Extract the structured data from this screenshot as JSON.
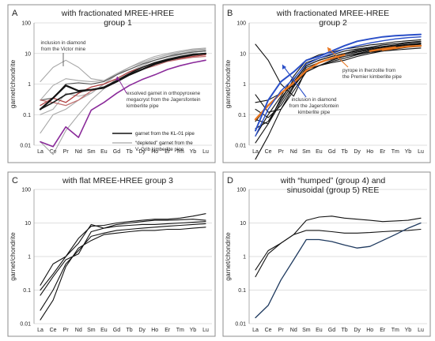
{
  "chart_data": {
    "type": "line",
    "x_categories": [
      "La",
      "Ce",
      "Pr",
      "Nd",
      "Sm",
      "Eu",
      "Gd",
      "Tb",
      "Dy",
      "Ho",
      "Er",
      "Tm",
      "Yb",
      "Lu"
    ],
    "ylabel": "garnet/chondrite",
    "yscale": "log",
    "ylim": [
      0.01,
      100
    ],
    "y_ticks": [
      "0.01",
      "0.1",
      "1",
      "10",
      "100"
    ],
    "grid": true,
    "panels": [
      {
        "letter": "A",
        "title_lines": [
          "with fractionated MREE-HREE",
          "group 1"
        ],
        "legend": [
          {
            "label": "garnet from the KL-01 pipe",
            "color": "#111111"
          },
          {
            "label": "“depleted” garnet from the",
            "label2": "V. Grib kimberlite pipe",
            "color": "#a8a8a8"
          }
        ],
        "annotations": [
          {
            "lines": [
              "inclusion in diamond",
              "from the Victor mine"
            ],
            "color": "#333333"
          },
          {
            "lines": [
              "exsolved garnet  in orthopyroxene",
              "megacryst from the Jagersfontein",
              "kimberlite pipe"
            ],
            "color": "#333333"
          }
        ],
        "series": [
          {
            "color": "#a8a8a8",
            "width": 1.1,
            "values": [
              0.3,
              0.9,
              1.5,
              1.3,
              1.2,
              1.3,
              2.2,
              3.5,
              5,
              7,
              9,
              11,
              13,
              14
            ]
          },
          {
            "color": "#a8a8a8",
            "width": 1.1,
            "values": [
              0.1,
              0.15,
              0.5,
              0.4,
              0.5,
              1.0,
              2.0,
              3.5,
              5,
              7,
              9,
              10,
              12,
              13
            ]
          },
          {
            "color": "#a8a8a8",
            "width": 1.1,
            "values": [
              0.025,
              0.1,
              0.15,
              0.3,
              0.5,
              1.0,
              2.0,
              3.5,
              5.5,
              8,
              10,
              12,
              14,
              15
            ]
          },
          {
            "color": "#a8a8a8",
            "width": 1.1,
            "values": [
              0.013,
              0.005,
              0.03,
              0.1,
              0.3,
              0.7,
              1.5,
              2.5,
              4,
              6,
              8,
              10,
              11,
              12
            ]
          },
          {
            "color": "#a8a8a8",
            "width": 1.1,
            "values": [
              1.2,
              3.5,
              6,
              3.5,
              1.5,
              1.3,
              2.0,
              3,
              4.5,
              6,
              7.5,
              9,
              11,
              12
            ]
          },
          {
            "color": "#555555",
            "width": 1.1,
            "values": [
              0.3,
              0.35,
              1.0,
              1.1,
              1.0,
              1.2,
              2.0,
              3,
              4.5,
              6,
              8,
              9.5,
              11,
              12
            ]
          },
          {
            "color": "#b04040",
            "width": 1.3,
            "values": [
              0.2,
              0.35,
              0.25,
              0.5,
              0.8,
              1.0,
              1.5,
              2.5,
              3.5,
              5,
              6,
              7,
              8,
              9
            ]
          },
          {
            "color": "#c07070",
            "width": 1.3,
            "values": [
              0.3,
              0.25,
              0.2,
              0.3,
              0.6,
              0.8,
              1.3,
              2.0,
              3,
              4,
              5.5,
              6.5,
              7.5,
              8
            ]
          },
          {
            "color": "#111111",
            "width": 2.2,
            "values": [
              0.15,
              0.35,
              0.9,
              0.6,
              0.65,
              0.75,
              1.2,
              2.0,
              3,
              4.5,
              6,
              7.5,
              9,
              10
            ]
          },
          {
            "color": "#1a1a1a",
            "width": 1.6,
            "values": [
              0.15,
              0.25,
              0.45,
              0.55,
              0.65,
              0.8,
              1.3,
              2.2,
              3.5,
              5,
              6.5,
              8,
              9.5,
              10
            ]
          },
          {
            "color": "#8a2a9a",
            "width": 1.6,
            "values": [
              0.013,
              0.009,
              0.04,
              0.018,
              0.14,
              0.25,
              0.5,
              0.9,
              1.4,
              2.0,
              3,
              4,
              5,
              6
            ]
          }
        ]
      },
      {
        "letter": "B",
        "title_lines": [
          "with fractionated MREE-HREE",
          "group 2"
        ],
        "legend": [],
        "annotations": [
          {
            "lines": [
              "pyrope in lherzolite from",
              "the Premier kimberlite pipe"
            ],
            "color": "#333333"
          },
          {
            "lines": [
              "inclusion in diamond",
              "from the Jagersfontein",
              "kimberlite pipe"
            ],
            "color": "#333333"
          }
        ],
        "series": [
          {
            "color": "#111111",
            "width": 1.1,
            "values": [
              20,
              6,
              1.0,
              0.4,
              3,
              4,
              5,
              6,
              8,
              10,
              12,
              14,
              16,
              17
            ]
          },
          {
            "color": "#111111",
            "width": 1.1,
            "values": [
              0.45,
              0.12,
              0.15,
              0.6,
              2.5,
              4,
              6,
              8,
              10,
              12,
              14,
              16,
              18,
              20
            ]
          },
          {
            "color": "#111111",
            "width": 1.1,
            "values": [
              0.15,
              0.08,
              0.2,
              0.9,
              3.5,
              5,
              7,
              9,
              11,
              13,
              15,
              17,
              20,
              22
            ]
          },
          {
            "color": "#111111",
            "width": 1.1,
            "values": [
              0.07,
              0.05,
              0.25,
              1.1,
              4,
              6,
              8,
              10,
              13,
              15,
              17,
              19,
              22,
              24
            ]
          },
          {
            "color": "#111111",
            "width": 1.1,
            "values": [
              0.035,
              0.06,
              0.3,
              1.4,
              5,
              7,
              9,
              12,
              14,
              16,
              19,
              21,
              23,
              25
            ]
          },
          {
            "color": "#111111",
            "width": 1.1,
            "values": [
              0.02,
              0.1,
              0.4,
              1.8,
              6,
              9,
              11,
              14,
              16,
              19,
              21,
              24,
              26,
              28
            ]
          },
          {
            "color": "#111111",
            "width": 1.1,
            "values": [
              0.012,
              0.05,
              0.35,
              1.2,
              4,
              6,
              8,
              10,
              12,
              14,
              16,
              18,
              20,
              21
            ]
          },
          {
            "color": "#111111",
            "width": 1.1,
            "values": [
              0.0035,
              0.02,
              0.15,
              0.8,
              3,
              5,
              7,
              9,
              11,
              13,
              15,
              17,
              19,
              20
            ]
          },
          {
            "color": "#111111",
            "width": 1.1,
            "values": [
              0.25,
              0.3,
              0.5,
              0.9,
              2.5,
              4,
              5.5,
              7,
              9,
              11,
              13,
              15,
              17,
              18
            ]
          },
          {
            "color": "#111111",
            "width": 1.1,
            "values": [
              0.06,
              0.2,
              0.5,
              1.0,
              3,
              5,
              6.5,
              8,
              9.5,
              11,
              12,
              13,
              14,
              15
            ]
          },
          {
            "color": "#e87722",
            "width": 2.4,
            "values": [
              0.07,
              0.2,
              0.5,
              1.1,
              2.8,
              5,
              7,
              9,
              null,
              12,
              14,
              16,
              null,
              null
            ]
          },
          {
            "color": "#e87722",
            "width": 2.4,
            "values": [
              null,
              null,
              null,
              null,
              null,
              null,
              null,
              null,
              null,
              null,
              13,
              15,
              17,
              18
            ]
          },
          {
            "color": "#2a4fc8",
            "width": 2.0,
            "values": [
              0.03,
              0.3,
              1.2,
              2.5,
              6,
              8,
              12,
              18,
              25,
              30,
              35,
              38,
              40,
              42
            ]
          },
          {
            "color": "#2a4fc8",
            "width": 1.4,
            "values": [
              0.02,
              0.15,
              0.6,
              1.5,
              4.5,
              7,
              10,
              14,
              18,
              22,
              26,
              30,
              33,
              35
            ]
          }
        ]
      },
      {
        "letter": "C",
        "title_lines": [
          "with flat MREE-HREE group 3"
        ],
        "legend": [],
        "annotations": [],
        "series": [
          {
            "color": "#111111",
            "width": 1.1,
            "values": [
              0.14,
              0.6,
              1.0,
              2.5,
              9,
              7,
              9,
              10,
              11,
              12,
              12,
              12.5,
              13,
              12
            ]
          },
          {
            "color": "#111111",
            "width": 1.1,
            "values": [
              0.1,
              0.3,
              1.0,
              3.5,
              8,
              8.5,
              10,
              11,
              12,
              13,
              13,
              14,
              16,
              19
            ]
          },
          {
            "color": "#111111",
            "width": 1.1,
            "values": [
              0.07,
              0.25,
              0.8,
              1.2,
              5.5,
              7,
              8,
              8.5,
              9,
              9,
              9.5,
              10,
              10.5,
              11
            ]
          },
          {
            "color": "#111111",
            "width": 1.1,
            "values": [
              0.025,
              0.1,
              0.6,
              1.5,
              4,
              5,
              6,
              6.5,
              7,
              7.5,
              8,
              8.5,
              9,
              9.5
            ]
          },
          {
            "color": "#111111",
            "width": 1.1,
            "values": [
              0.013,
              0.05,
              0.5,
              1.8,
              3,
              4.5,
              5,
              5.5,
              6,
              6,
              6.5,
              6.5,
              7,
              7.5
            ]
          }
        ]
      },
      {
        "letter": "D",
        "title_lines": [
          "with “humped” (group 4) and",
          "sinusoidal (group 5) REE"
        ],
        "legend": [],
        "annotations": [],
        "series": [
          {
            "color": "#111111",
            "width": 1.1,
            "values": [
              0.4,
              1.5,
              2.5,
              4.5,
              12,
              15,
              16,
              14,
              13,
              12,
              11,
              11.5,
              12,
              14
            ]
          },
          {
            "color": "#111111",
            "width": 1.1,
            "values": [
              0.25,
              1.2,
              2.5,
              4.5,
              6,
              6,
              5.5,
              5,
              5,
              5.2,
              5.5,
              5.8,
              6,
              6.5
            ]
          },
          {
            "color": "#1f3a5f",
            "width": 1.3,
            "values": [
              0.015,
              0.035,
              0.2,
              0.8,
              3.2,
              3.2,
              2.8,
              2.2,
              1.8,
              2.0,
              3.0,
              4.5,
              7,
              10
            ]
          }
        ]
      }
    ]
  }
}
